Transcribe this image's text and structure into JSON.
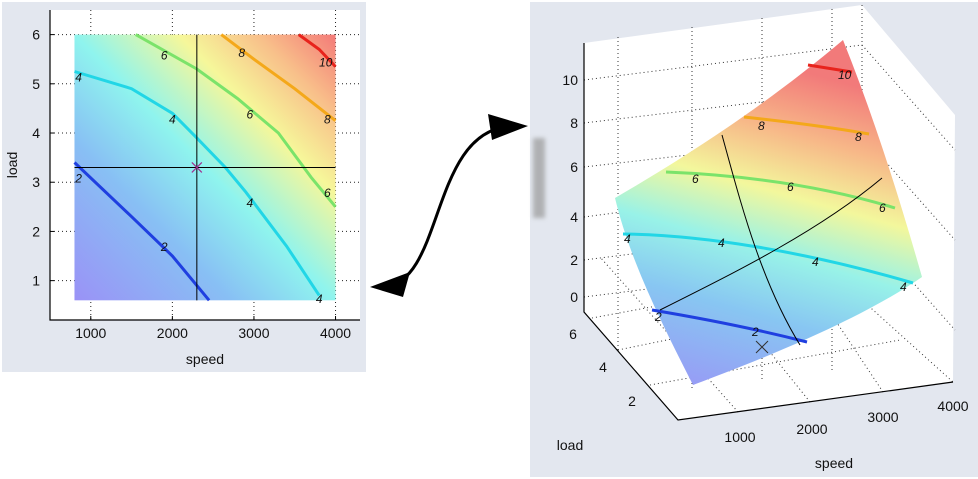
{
  "chart_data": [
    {
      "type": "contour",
      "title": "",
      "xlabel": "speed",
      "ylabel": "load",
      "xlim": [
        500,
        4300
      ],
      "ylim": [
        0.2,
        6.5
      ],
      "xticks": [
        1000,
        2000,
        3000,
        4000
      ],
      "yticks": [
        1,
        2,
        3,
        4,
        5,
        6
      ],
      "grid": true,
      "surface_extent": {
        "speed": [
          800,
          4000
        ],
        "load": [
          0.6,
          6
        ]
      },
      "crosshair": {
        "speed": 2300,
        "load": 3.3
      },
      "contours": [
        {
          "level": 2,
          "color": "#1f3fe0",
          "points": [
            [
              800,
              3.4
            ],
            [
              1500,
              2.3
            ],
            [
              2000,
              1.5
            ],
            [
              2450,
              0.6
            ]
          ],
          "labels": [
            [
              850,
              3.1
            ],
            [
              1900,
              1.7
            ]
          ]
        },
        {
          "level": 4,
          "color": "#22d6e6",
          "points": [
            [
              800,
              5.25
            ],
            [
              1500,
              4.9
            ],
            [
              2000,
              4.4
            ],
            [
              2300,
              3.9
            ],
            [
              2650,
              3.3
            ],
            [
              2900,
              2.8
            ],
            [
              3400,
              1.7
            ],
            [
              3800,
              0.7
            ]
          ],
          "labels": [
            [
              850,
              5.15
            ],
            [
              2000,
              4.3
            ],
            [
              2950,
              2.6
            ],
            [
              3800,
              0.65
            ]
          ]
        },
        {
          "level": 6,
          "color": "#7be36a",
          "points": [
            [
              1550,
              6
            ],
            [
              2300,
              5.3
            ],
            [
              2800,
              4.7
            ],
            [
              3300,
              4.0
            ],
            [
              3700,
              3.1
            ],
            [
              4000,
              2.5
            ]
          ],
          "labels": [
            [
              1900,
              5.6
            ],
            [
              2950,
              4.4
            ],
            [
              3900,
              2.8
            ]
          ]
        },
        {
          "level": 8,
          "color": "#f4a81a",
          "points": [
            [
              2600,
              6
            ],
            [
              3000,
              5.5
            ],
            [
              3500,
              4.9
            ],
            [
              4000,
              4.25
            ]
          ],
          "labels": [
            [
              2850,
              5.65
            ],
            [
              3900,
              4.3
            ]
          ]
        },
        {
          "level": 10,
          "color": "#e8231c",
          "points": [
            [
              3550,
              6
            ],
            [
              3800,
              5.7
            ],
            [
              4000,
              5.35
            ]
          ],
          "labels": [
            [
              3880,
              5.45
            ]
          ]
        }
      ]
    },
    {
      "type": "surface3d",
      "xlabel": "speed",
      "ylabel": "load",
      "xticks": [
        1000,
        2000,
        3000,
        4000
      ],
      "yticks": [
        2,
        4,
        6
      ],
      "zticks": [
        0,
        2,
        4,
        6,
        8,
        10
      ],
      "contour_levels": [
        2,
        4,
        6,
        8,
        10
      ]
    }
  ]
}
